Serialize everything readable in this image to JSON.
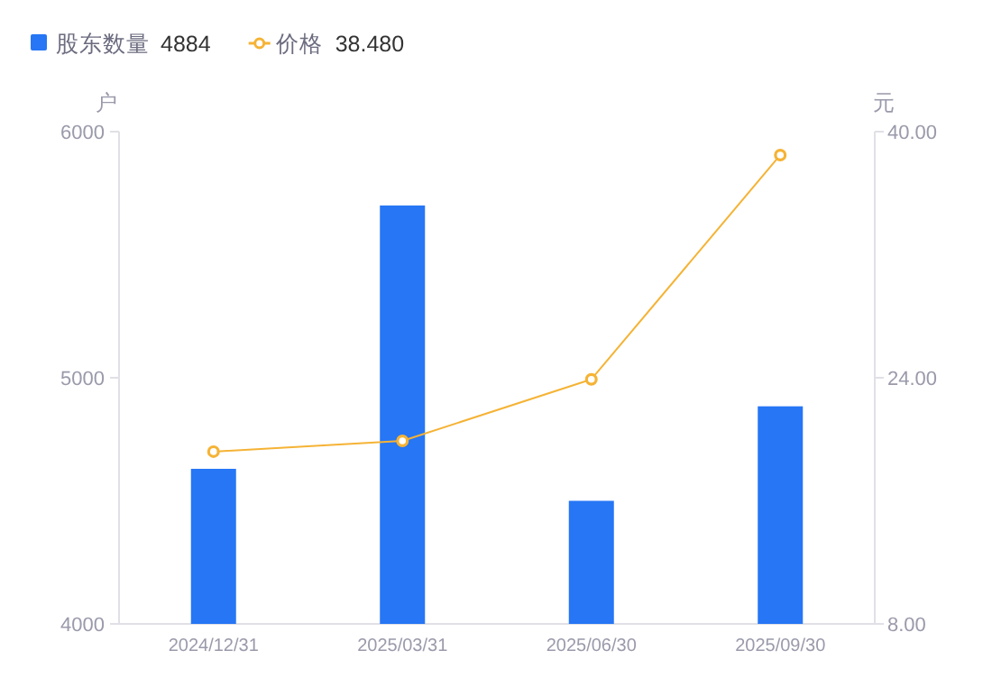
{
  "chart_data": {
    "type": "bar",
    "categories": [
      "2024/12/31",
      "2025/03/31",
      "2025/06/30",
      "2025/09/30"
    ],
    "ylabel": "户",
    "y2label": "元",
    "series": [
      {
        "name": "股东数量",
        "color": "#2676f5",
        "values": [
          4630,
          5700,
          4500,
          4884
        ]
      },
      {
        "name": "价格",
        "type": "line",
        "axis": "y2",
        "color": "#f5b335",
        "marker": "circle",
        "values": [
          19.2,
          19.9,
          23.9,
          38.48
        ]
      }
    ],
    "annotations": [
      "4884",
      "38.480"
    ],
    "ylim": [
      4000,
      6000
    ],
    "yticks": [
      4000,
      5000,
      6000
    ],
    "y2lim": [
      8,
      40
    ],
    "y2ticks": [
      {
        "value": 8,
        "label": "8.00"
      },
      {
        "value": 24,
        "label": "24.00"
      },
      {
        "value": 40,
        "label": "40.00"
      }
    ],
    "grid": false,
    "legend": "top left"
  }
}
